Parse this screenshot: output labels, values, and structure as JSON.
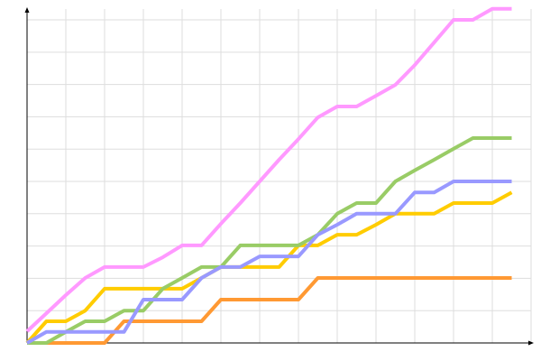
{
  "chart_data": {
    "type": "line",
    "x": [
      0,
      1,
      2,
      3,
      4,
      5,
      6,
      7,
      8,
      9,
      10,
      11,
      12,
      13,
      14,
      15,
      16,
      17,
      18,
      19,
      20,
      21,
      22,
      23,
      24,
      25
    ],
    "xlim": [
      0,
      26
    ],
    "ylim": [
      0,
      10.4
    ],
    "xticks": [
      2,
      4,
      6,
      8,
      10,
      12,
      14,
      16,
      18,
      20,
      22,
      24,
      26
    ],
    "yticks": [
      1,
      2,
      3,
      4,
      5,
      6,
      7,
      8,
      9,
      10
    ],
    "grid": true,
    "series": [
      {
        "color": "#ff9933",
        "values": [
          0,
          0,
          0,
          0,
          0,
          0.67,
          0.67,
          0.67,
          0.67,
          0.67,
          1.34,
          1.34,
          1.34,
          1.34,
          1.34,
          2.01,
          2.01,
          2.01,
          2.01,
          2.01,
          2.01,
          2.01,
          2.01,
          2.01,
          2.01,
          2.01
        ]
      },
      {
        "color": "#ffcc00",
        "values": [
          0,
          0.67,
          0.67,
          1.0,
          1.68,
          1.68,
          1.68,
          1.68,
          1.68,
          2.01,
          2.35,
          2.35,
          2.35,
          2.35,
          3.02,
          3.02,
          3.35,
          3.35,
          3.66,
          4.0,
          4.0,
          4.0,
          4.33,
          4.33,
          4.33,
          4.66
        ]
      },
      {
        "color": "#99cc66",
        "values": [
          0,
          0,
          0.34,
          0.67,
          0.67,
          1.0,
          1.0,
          1.68,
          2.01,
          2.35,
          2.35,
          3.02,
          3.02,
          3.02,
          3.02,
          3.35,
          4.0,
          4.33,
          4.33,
          5.0,
          5.34,
          5.67,
          6.01,
          6.34,
          6.34,
          6.34
        ]
      },
      {
        "color": "#9999ff",
        "values": [
          0,
          0.34,
          0.34,
          0.34,
          0.34,
          0.34,
          1.34,
          1.34,
          1.34,
          2.01,
          2.35,
          2.35,
          2.68,
          2.68,
          2.68,
          3.35,
          3.66,
          4.0,
          4.0,
          4.0,
          4.66,
          4.66,
          5.0,
          5.0,
          5.0,
          5.0
        ]
      },
      {
        "color": "#ff99ff",
        "values": [
          0.36,
          0.92,
          1.48,
          2.01,
          2.35,
          2.35,
          2.35,
          2.65,
          3.02,
          3.02,
          3.69,
          4.33,
          5.0,
          5.67,
          6.31,
          6.98,
          7.32,
          7.32,
          7.65,
          7.99,
          8.6,
          9.3,
          10.0,
          10.0,
          10.34,
          10.34
        ]
      }
    ]
  }
}
